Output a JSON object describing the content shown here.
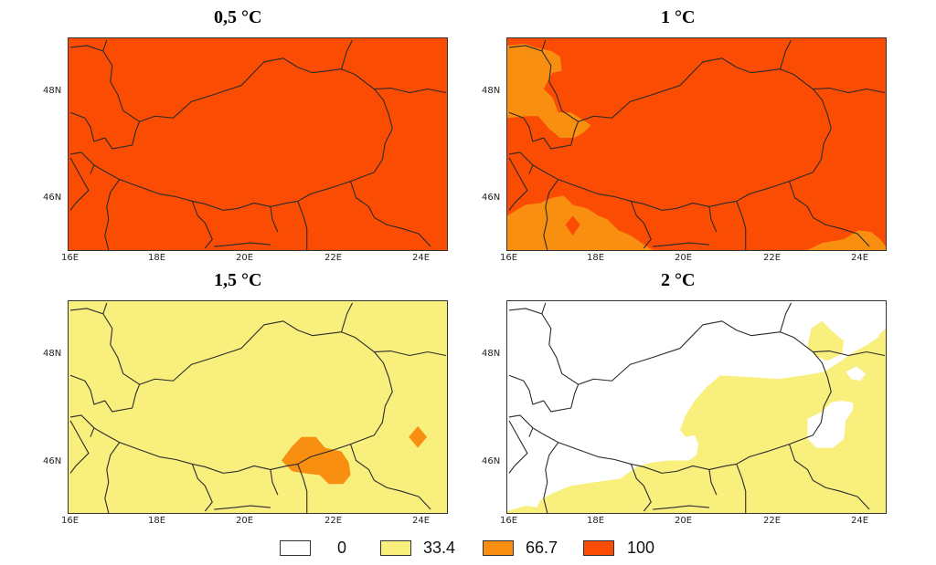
{
  "colors": {
    "c0": "#ffffff",
    "c33": "#f8ef7c",
    "c66": "#f98f10",
    "c100": "#fb4c03",
    "border": "#2a2a2a"
  },
  "panels": [
    {
      "title": "0,5 °C",
      "lat_ticks": [
        "48N",
        "46N"
      ],
      "lon_ticks": [
        "16E",
        "18E",
        "20E",
        "22E",
        "24E"
      ]
    },
    {
      "title": "1 °C",
      "lat_ticks": [
        "48N",
        "46N"
      ],
      "lon_ticks": [
        "16E",
        "18E",
        "20E",
        "22E",
        "24E"
      ]
    },
    {
      "title": "1,5 °C",
      "lat_ticks": [
        "48N",
        "46N"
      ],
      "lon_ticks": [
        "16E",
        "18E",
        "20E",
        "22E",
        "24E"
      ]
    },
    {
      "title": "2 °C",
      "lat_ticks": [
        "48N",
        "46N"
      ],
      "lon_ticks": [
        "16E",
        "18E",
        "20E",
        "22E",
        "24E"
      ]
    }
  ],
  "legend": [
    {
      "label": "0",
      "color_key": "c0"
    },
    {
      "label": "33.4",
      "color_key": "c33"
    },
    {
      "label": "66.7",
      "color_key": "c66"
    },
    {
      "label": "100",
      "color_key": "c100"
    }
  ]
}
